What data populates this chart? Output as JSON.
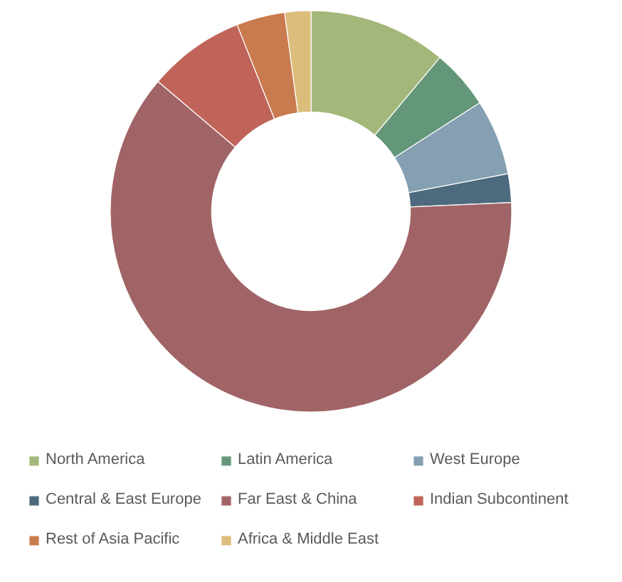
{
  "chart_data": {
    "type": "donut",
    "categories": [
      "North America",
      "Latin America",
      "West Europe",
      "Central & East Europe",
      "Far East & China",
      "Indian Subcontinent",
      "Rest of Asia Pacific",
      "Africa & Middle East"
    ],
    "values": [
      11.1,
      4.8,
      6.1,
      2.3,
      61.9,
      7.8,
      3.9,
      2.1
    ],
    "colors": [
      "#a4b77a",
      "#64967a",
      "#84a0b2",
      "#4e6a7e",
      "#a16466",
      "#c0645a",
      "#c97a4e",
      "#dcbd7c"
    ],
    "legend": "bottom"
  }
}
